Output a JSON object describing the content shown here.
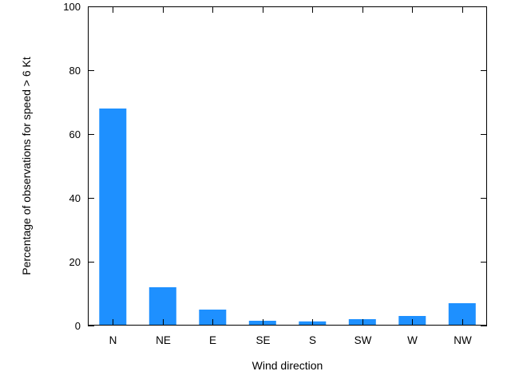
{
  "chart_data": {
    "type": "bar",
    "categories": [
      "N",
      "NE",
      "E",
      "SE",
      "S",
      "SW",
      "W",
      "NW"
    ],
    "values": [
      68,
      12,
      5,
      1.5,
      1.3,
      2,
      3,
      7
    ],
    "title": "",
    "xlabel": "Wind direction",
    "ylabel": "Percentage of observations for speed > 6 Kt",
    "ylim": [
      0,
      100
    ],
    "yticks": [
      0,
      20,
      40,
      60,
      80,
      100
    ],
    "bar_color": "#1E90FF",
    "axis_color": "#000000",
    "grid": false,
    "legend": "none"
  }
}
